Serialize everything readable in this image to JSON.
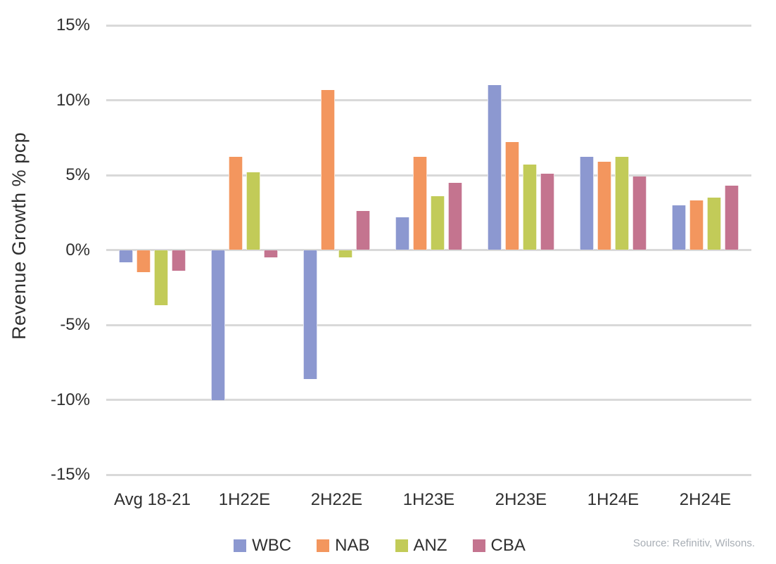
{
  "chart_data": {
    "type": "bar",
    "title": "",
    "xlabel": "",
    "ylabel": "Revenue Growth % pcp",
    "ylim": [
      -15,
      15
    ],
    "ytick_step": 5,
    "yticks": [
      {
        "value": 15,
        "label": "15%"
      },
      {
        "value": 10,
        "label": "10%"
      },
      {
        "value": 5,
        "label": "5%"
      },
      {
        "value": 0,
        "label": "0%"
      },
      {
        "value": -5,
        "label": "-5%"
      },
      {
        "value": -10,
        "label": "-10%"
      },
      {
        "value": -15,
        "label": "-15%"
      }
    ],
    "grid": true,
    "legend_position": "bottom",
    "categories": [
      "Avg 18-21",
      "1H22E",
      "2H22E",
      "1H23E",
      "2H23E",
      "1H24E",
      "2H24E"
    ],
    "series": [
      {
        "name": "WBC",
        "color": "#8c98d0",
        "values": [
          -0.8,
          -10.0,
          -8.6,
          2.2,
          11.0,
          6.2,
          3.0
        ]
      },
      {
        "name": "NAB",
        "color": "#f3965e",
        "values": [
          -1.5,
          6.2,
          10.7,
          6.2,
          7.2,
          5.9,
          3.3
        ]
      },
      {
        "name": "ANZ",
        "color": "#c2cb58",
        "values": [
          -3.7,
          5.2,
          -0.5,
          3.6,
          5.7,
          6.2,
          3.5
        ]
      },
      {
        "name": "CBA",
        "color": "#c4748f",
        "values": [
          -1.4,
          -0.5,
          2.6,
          4.5,
          5.1,
          4.9,
          4.3
        ]
      }
    ]
  },
  "source_note": "Source: Refinitiv, Wilsons.",
  "colors": {
    "gridline": "#d9d9d9",
    "axis_text": "#2f2f2f",
    "source_text": "#a8aeb5",
    "background": "#ffffff"
  }
}
